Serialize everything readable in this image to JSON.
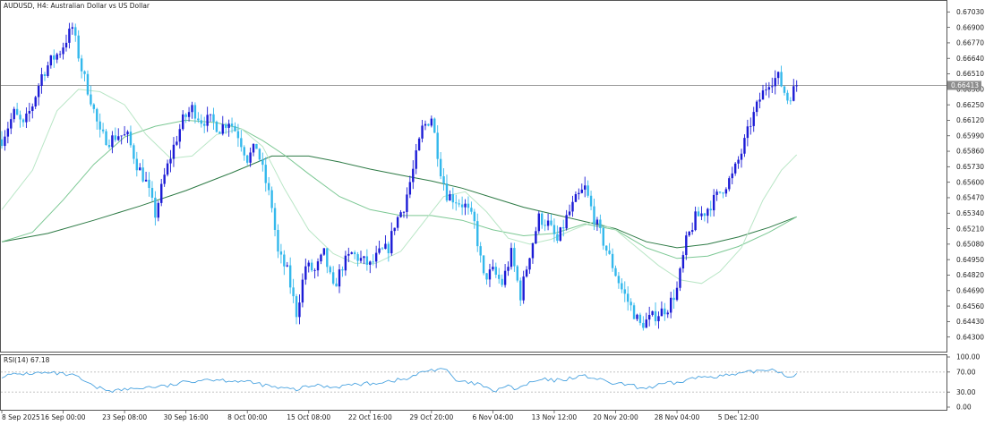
{
  "header": {
    "symbol": "AUDUSD",
    "timeframe": "H4",
    "description": "Australian Dollar vs US Dollar",
    "title_text": "AUDUSD, H4:  Australian Dollar vs US Dollar"
  },
  "colors": {
    "bull": "#1c1cd6",
    "bear": "#33b8ec",
    "ma_fast": "#b9e6c6",
    "ma_mid": "#7cc894",
    "ma_slow": "#2d7a45",
    "rsi": "#4aa3e0",
    "grid_dash": "#bbbbbb",
    "axis": "#555555",
    "price_line": "#909090"
  },
  "chart_data": [
    {
      "type": "candlestick",
      "yaxis": {
        "range": [
          0.6423,
          0.671
        ],
        "ticks": [
          "0.67030",
          "0.66900",
          "0.66770",
          "0.66640",
          "0.66510",
          "0.66380",
          "0.66250",
          "0.66120",
          "0.65990",
          "0.65860",
          "0.65730",
          "0.65600",
          "0.65470",
          "0.65340",
          "0.65210",
          "0.65080",
          "0.64950",
          "0.64820",
          "0.64690",
          "0.64560",
          "0.64430",
          "0.64300"
        ]
      },
      "xaxis": {
        "range": [
          0,
          248
        ],
        "ticks": [
          {
            "label": "8 Sep 2025",
            "x": 0
          },
          {
            "label": "16 Sep 00:00",
            "x": 20
          },
          {
            "label": "23 Sep 08:00",
            "x": 40
          },
          {
            "label": "30 Sep 16:00",
            "x": 60
          },
          {
            "label": "8 Oct 00:00",
            "x": 80
          },
          {
            "label": "15 Oct 08:00",
            "x": 100
          },
          {
            "label": "22 Oct 16:00",
            "x": 120
          },
          {
            "label": "29 Oct 20:00",
            "x": 140
          },
          {
            "label": "6 Nov 04:00",
            "x": 160
          },
          {
            "label": "13 Nov 12:00",
            "x": 180
          },
          {
            "label": "20 Nov 20:00",
            "x": 200
          },
          {
            "label": "28 Nov 04:00",
            "x": 220
          },
          {
            "label": "5 Dec 12:00",
            "x": 240
          }
        ]
      },
      "current_price": "0.66413",
      "current_value": 0.66413,
      "close_path": [
        [
          0,
          0.6596
        ],
        [
          4,
          0.6618
        ],
        [
          7,
          0.6607
        ],
        [
          10,
          0.6625
        ],
        [
          13,
          0.665
        ],
        [
          16,
          0.6662
        ],
        [
          19,
          0.667
        ],
        [
          23,
          0.669
        ],
        [
          26,
          0.6655
        ],
        [
          29,
          0.663
        ],
        [
          32,
          0.66
        ],
        [
          35,
          0.6595
        ],
        [
          38,
          0.66
        ],
        [
          41,
          0.6598
        ],
        [
          44,
          0.6575
        ],
        [
          47,
          0.656
        ],
        [
          50,
          0.6533
        ],
        [
          53,
          0.6565
        ],
        [
          56,
          0.659
        ],
        [
          59,
          0.6612
        ],
        [
          62,
          0.6622
        ],
        [
          65,
          0.6612
        ],
        [
          68,
          0.6612
        ],
        [
          71,
          0.6605
        ],
        [
          74,
          0.6612
        ],
        [
          77,
          0.66
        ],
        [
          80,
          0.658
        ],
        [
          83,
          0.659
        ],
        [
          86,
          0.656
        ],
        [
          88,
          0.654
        ],
        [
          90,
          0.65
        ],
        [
          93,
          0.6485
        ],
        [
          96,
          0.645
        ],
        [
          99,
          0.649
        ],
        [
          102,
          0.6485
        ],
        [
          105,
          0.65
        ],
        [
          108,
          0.647
        ],
        [
          111,
          0.649
        ],
        [
          114,
          0.65
        ],
        [
          117,
          0.6495
        ],
        [
          120,
          0.649
        ],
        [
          123,
          0.65
        ],
        [
          126,
          0.6505
        ],
        [
          128,
          0.6525
        ],
        [
          131,
          0.654
        ],
        [
          134,
          0.657
        ],
        [
          137,
          0.6605
        ],
        [
          140,
          0.6615
        ],
        [
          143,
          0.657
        ],
        [
          145,
          0.655
        ],
        [
          148,
          0.6545
        ],
        [
          151,
          0.654
        ],
        [
          154,
          0.6525
        ],
        [
          157,
          0.648
        ],
        [
          160,
          0.6485
        ],
        [
          163,
          0.6475
        ],
        [
          166,
          0.65
        ],
        [
          169,
          0.6465
        ],
        [
          172,
          0.65
        ],
        [
          175,
          0.653
        ],
        [
          178,
          0.6525
        ],
        [
          181,
          0.651
        ],
        [
          184,
          0.653
        ],
        [
          187,
          0.6545
        ],
        [
          190,
          0.6555
        ],
        [
          193,
          0.653
        ],
        [
          196,
          0.651
        ],
        [
          199,
          0.649
        ],
        [
          202,
          0.647
        ],
        [
          205,
          0.6455
        ],
        [
          208,
          0.644
        ],
        [
          211,
          0.6445
        ],
        [
          214,
          0.645
        ],
        [
          217,
          0.6455
        ],
        [
          220,
          0.647
        ],
        [
          223,
          0.651
        ],
        [
          226,
          0.653
        ],
        [
          229,
          0.6535
        ],
        [
          232,
          0.6545
        ],
        [
          235,
          0.6555
        ],
        [
          238,
          0.6565
        ],
        [
          241,
          0.6585
        ],
        [
          244,
          0.661
        ],
        [
          247,
          0.663
        ],
        [
          250,
          0.6645
        ],
        [
          253,
          0.6648
        ],
        [
          256,
          0.663
        ],
        [
          259,
          0.6641
        ]
      ],
      "ma_fast_path": [
        [
          0,
          0.6537
        ],
        [
          10,
          0.657
        ],
        [
          18,
          0.662
        ],
        [
          25,
          0.6638
        ],
        [
          32,
          0.6636
        ],
        [
          40,
          0.6625
        ],
        [
          47,
          0.66
        ],
        [
          55,
          0.658
        ],
        [
          62,
          0.6582
        ],
        [
          70,
          0.66
        ],
        [
          78,
          0.6605
        ],
        [
          85,
          0.659
        ],
        [
          92,
          0.6555
        ],
        [
          100,
          0.652
        ],
        [
          108,
          0.65
        ],
        [
          115,
          0.6492
        ],
        [
          122,
          0.6492
        ],
        [
          130,
          0.6502
        ],
        [
          137,
          0.6525
        ],
        [
          144,
          0.6548
        ],
        [
          151,
          0.6552
        ],
        [
          158,
          0.6535
        ],
        [
          165,
          0.6513
        ],
        [
          172,
          0.6508
        ],
        [
          179,
          0.6512
        ],
        [
          186,
          0.652
        ],
        [
          193,
          0.6527
        ],
        [
          200,
          0.652
        ],
        [
          207,
          0.6505
        ],
        [
          214,
          0.649
        ],
        [
          221,
          0.6478
        ],
        [
          228,
          0.6475
        ],
        [
          234,
          0.6485
        ],
        [
          241,
          0.6505
        ],
        [
          248,
          0.6545
        ],
        [
          254,
          0.657
        ],
        [
          259,
          0.6583
        ]
      ],
      "ma_mid_path": [
        [
          0,
          0.651
        ],
        [
          10,
          0.6518
        ],
        [
          20,
          0.6545
        ],
        [
          30,
          0.6575
        ],
        [
          40,
          0.6598
        ],
        [
          50,
          0.6607
        ],
        [
          60,
          0.6612
        ],
        [
          70,
          0.661
        ],
        [
          78,
          0.6605
        ],
        [
          85,
          0.6595
        ],
        [
          92,
          0.6583
        ],
        [
          100,
          0.6567
        ],
        [
          110,
          0.6548
        ],
        [
          120,
          0.6537
        ],
        [
          130,
          0.6532
        ],
        [
          140,
          0.6532
        ],
        [
          150,
          0.6528
        ],
        [
          160,
          0.652
        ],
        [
          170,
          0.6515
        ],
        [
          180,
          0.6517
        ],
        [
          190,
          0.6525
        ],
        [
          200,
          0.652
        ],
        [
          210,
          0.6505
        ],
        [
          220,
          0.6496
        ],
        [
          230,
          0.6498
        ],
        [
          240,
          0.6506
        ],
        [
          250,
          0.6518
        ],
        [
          259,
          0.6531
        ]
      ],
      "ma_slow_path": [
        [
          0,
          0.651
        ],
        [
          15,
          0.6517
        ],
        [
          30,
          0.6528
        ],
        [
          45,
          0.654
        ],
        [
          60,
          0.6553
        ],
        [
          75,
          0.6568
        ],
        [
          88,
          0.6582
        ],
        [
          100,
          0.6582
        ],
        [
          110,
          0.6577
        ],
        [
          120,
          0.6571
        ],
        [
          130,
          0.6566
        ],
        [
          140,
          0.6561
        ],
        [
          150,
          0.6555
        ],
        [
          160,
          0.6547
        ],
        [
          170,
          0.6539
        ],
        [
          180,
          0.6533
        ],
        [
          190,
          0.6527
        ],
        [
          200,
          0.6521
        ],
        [
          210,
          0.651
        ],
        [
          220,
          0.6505
        ],
        [
          230,
          0.6508
        ],
        [
          240,
          0.6514
        ],
        [
          250,
          0.6522
        ],
        [
          259,
          0.6531
        ]
      ]
    },
    {
      "type": "line",
      "name": "RSI(14)",
      "label": "RSI(14) 67.18",
      "last_value": 67.18,
      "yaxis": {
        "range": [
          0,
          100
        ],
        "ticks": [
          "100.00",
          "70.00",
          "30.00",
          "0.00"
        ]
      },
      "levels": [
        70,
        30
      ],
      "rsi_path": [
        [
          0,
          62
        ],
        [
          6,
          66
        ],
        [
          12,
          68
        ],
        [
          18,
          67
        ],
        [
          24,
          62
        ],
        [
          30,
          40
        ],
        [
          36,
          33
        ],
        [
          42,
          36
        ],
        [
          48,
          40
        ],
        [
          54,
          42
        ],
        [
          60,
          50
        ],
        [
          66,
          56
        ],
        [
          72,
          54
        ],
        [
          78,
          52
        ],
        [
          84,
          46
        ],
        [
          90,
          38
        ],
        [
          96,
          35
        ],
        [
          102,
          44
        ],
        [
          108,
          40
        ],
        [
          114,
          45
        ],
        [
          120,
          47
        ],
        [
          126,
          52
        ],
        [
          132,
          56
        ],
        [
          138,
          72
        ],
        [
          144,
          78
        ],
        [
          148,
          52
        ],
        [
          152,
          48
        ],
        [
          156,
          45
        ],
        [
          160,
          30
        ],
        [
          164,
          42
        ],
        [
          168,
          36
        ],
        [
          172,
          48
        ],
        [
          176,
          55
        ],
        [
          180,
          53
        ],
        [
          184,
          56
        ],
        [
          188,
          62
        ],
        [
          192,
          60
        ],
        [
          196,
          52
        ],
        [
          200,
          46
        ],
        [
          204,
          45
        ],
        [
          208,
          38
        ],
        [
          212,
          40
        ],
        [
          216,
          47
        ],
        [
          220,
          48
        ],
        [
          224,
          56
        ],
        [
          228,
          60
        ],
        [
          232,
          62
        ],
        [
          236,
          63
        ],
        [
          240,
          65
        ],
        [
          244,
          70
        ],
        [
          248,
          74
        ],
        [
          252,
          76
        ],
        [
          256,
          60
        ],
        [
          259,
          67
        ]
      ]
    }
  ]
}
